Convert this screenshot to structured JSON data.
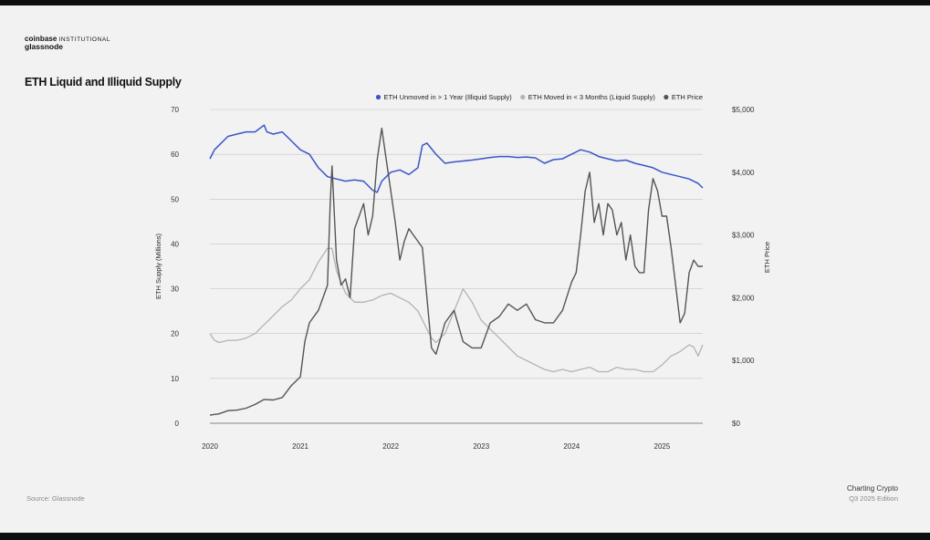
{
  "header": {
    "brand_name": "coinbase",
    "brand_sub": "INSTITUTIONAL",
    "partner": "glassnode",
    "title": "ETH Liquid and Illiquid Supply"
  },
  "footer": {
    "source": "Source: Glassnode",
    "publication": "Charting Crypto",
    "edition": "Q3 2025 Edition"
  },
  "colors": {
    "illiquid": "#3a55c9",
    "liquid": "#b3b3b3",
    "price": "#555555",
    "grid": "#c4c4c4"
  },
  "chart_data": {
    "type": "line",
    "title": "ETH Liquid and Illiquid Supply",
    "ylabel": "ETH Supply (Millions)",
    "ylabel_right": "ETH Price",
    "ylim": [
      0,
      70
    ],
    "ylim_right": [
      0,
      5000
    ],
    "yticks": [
      0,
      10,
      20,
      30,
      40,
      50,
      60,
      70
    ],
    "yticks_right": [
      "$0",
      "$1,000",
      "$2,000",
      "$3,000",
      "$4,000",
      "$5,000"
    ],
    "xlim": [
      2020.0,
      2025.45
    ],
    "xticks": [
      "2020",
      "2021",
      "2022",
      "2023",
      "2024",
      "2025"
    ],
    "grid": true,
    "legend_position": "top-right",
    "series": [
      {
        "name": "ETH Unmoved in > 1 Year (Illiquid Supply)",
        "axis": "left",
        "x": [
          2020.0,
          2020.05,
          2020.1,
          2020.2,
          2020.3,
          2020.4,
          2020.5,
          2020.6,
          2020.63,
          2020.7,
          2020.8,
          2020.85,
          2020.9,
          2021.0,
          2021.1,
          2021.2,
          2021.3,
          2021.4,
          2021.5,
          2021.6,
          2021.7,
          2021.8,
          2021.85,
          2021.9,
          2022.0,
          2022.1,
          2022.2,
          2022.3,
          2022.35,
          2022.4,
          2022.5,
          2022.6,
          2022.7,
          2022.8,
          2022.9,
          2023.0,
          2023.1,
          2023.2,
          2023.3,
          2023.4,
          2023.5,
          2023.6,
          2023.7,
          2023.8,
          2023.9,
          2024.0,
          2024.1,
          2024.2,
          2024.3,
          2024.4,
          2024.5,
          2024.6,
          2024.7,
          2024.8,
          2024.9,
          2025.0,
          2025.1,
          2025.2,
          2025.3,
          2025.4,
          2025.45
        ],
        "y": [
          59,
          61,
          62,
          64,
          64.5,
          65,
          65,
          66.5,
          65,
          64.5,
          65,
          64,
          63,
          61,
          60,
          57,
          55,
          54.5,
          54,
          54.3,
          54,
          52,
          51.5,
          54,
          56,
          56.5,
          55.5,
          57,
          62,
          62.5,
          60,
          58,
          58.3,
          58.5,
          58.7,
          59,
          59.3,
          59.5,
          59.5,
          59.3,
          59.4,
          59.2,
          58,
          58.8,
          59,
          60,
          61,
          60.5,
          59.5,
          59,
          58.5,
          58.7,
          58,
          57.5,
          57,
          56,
          55.5,
          55,
          54.5,
          53.5,
          52.5
        ]
      },
      {
        "name": "ETH Moved in < 3 Months (Liquid Supply)",
        "axis": "left",
        "x": [
          2020.0,
          2020.05,
          2020.1,
          2020.2,
          2020.3,
          2020.4,
          2020.5,
          2020.6,
          2020.7,
          2020.8,
          2020.9,
          2021.0,
          2021.1,
          2021.2,
          2021.3,
          2021.35,
          2021.4,
          2021.5,
          2021.6,
          2021.7,
          2021.8,
          2021.9,
          2022.0,
          2022.1,
          2022.2,
          2022.3,
          2022.4,
          2022.45,
          2022.5,
          2022.6,
          2022.7,
          2022.8,
          2022.9,
          2023.0,
          2023.1,
          2023.2,
          2023.3,
          2023.4,
          2023.5,
          2023.6,
          2023.7,
          2023.8,
          2023.9,
          2024.0,
          2024.1,
          2024.2,
          2024.3,
          2024.4,
          2024.5,
          2024.6,
          2024.7,
          2024.8,
          2024.9,
          2025.0,
          2025.1,
          2025.2,
          2025.3,
          2025.35,
          2025.4,
          2025.45
        ],
        "y": [
          20,
          18.5,
          18,
          18.5,
          18.5,
          19,
          20,
          22,
          24,
          26,
          27.5,
          30,
          32,
          36,
          39,
          39,
          34,
          29,
          27,
          27,
          27.5,
          28.5,
          29,
          28,
          27,
          25,
          21,
          19,
          18,
          20,
          25,
          30,
          27,
          23,
          21,
          19,
          17,
          15,
          14,
          13,
          12,
          11.5,
          12,
          11.5,
          12,
          12.5,
          11.5,
          11.5,
          12.5,
          12,
          12,
          11.5,
          11.5,
          13,
          15,
          16,
          17.5,
          17,
          15,
          17.5
        ]
      },
      {
        "name": "ETH Price",
        "axis": "right",
        "x": [
          2020.0,
          2020.1,
          2020.2,
          2020.3,
          2020.4,
          2020.5,
          2020.6,
          2020.7,
          2020.8,
          2020.9,
          2021.0,
          2021.05,
          2021.1,
          2021.2,
          2021.25,
          2021.3,
          2021.33,
          2021.35,
          2021.4,
          2021.45,
          2021.5,
          2021.55,
          2021.6,
          2021.65,
          2021.7,
          2021.75,
          2021.8,
          2021.85,
          2021.9,
          2021.95,
          2022.0,
          2022.05,
          2022.1,
          2022.15,
          2022.2,
          2022.25,
          2022.3,
          2022.35,
          2022.4,
          2022.45,
          2022.5,
          2022.6,
          2022.7,
          2022.8,
          2022.9,
          2023.0,
          2023.1,
          2023.2,
          2023.3,
          2023.4,
          2023.5,
          2023.6,
          2023.7,
          2023.8,
          2023.9,
          2024.0,
          2024.05,
          2024.1,
          2024.15,
          2024.2,
          2024.25,
          2024.3,
          2024.35,
          2024.4,
          2024.45,
          2024.5,
          2024.55,
          2024.6,
          2024.65,
          2024.7,
          2024.75,
          2024.8,
          2024.85,
          2024.9,
          2024.95,
          2025.0,
          2025.05,
          2025.1,
          2025.15,
          2025.2,
          2025.25,
          2025.3,
          2025.35,
          2025.4,
          2025.45
        ],
        "y": [
          130,
          150,
          200,
          210,
          240,
          300,
          380,
          370,
          410,
          600,
          740,
          1300,
          1600,
          1800,
          2000,
          2200,
          3500,
          4100,
          2600,
          2200,
          2300,
          2000,
          3100,
          3300,
          3500,
          3000,
          3300,
          4200,
          4700,
          4200,
          3700,
          3200,
          2600,
          2900,
          3100,
          3000,
          2900,
          2800,
          2000,
          1200,
          1100,
          1600,
          1800,
          1300,
          1200,
          1200,
          1600,
          1700,
          1900,
          1800,
          1900,
          1650,
          1600,
          1600,
          1800,
          2250,
          2400,
          3000,
          3700,
          4000,
          3200,
          3500,
          3000,
          3500,
          3400,
          3000,
          3200,
          2600,
          3000,
          2500,
          2400,
          2400,
          3400,
          3900,
          3700,
          3300,
          3300,
          2800,
          2200,
          1600,
          1750,
          2400,
          2600,
          2500,
          2500
        ]
      }
    ]
  }
}
